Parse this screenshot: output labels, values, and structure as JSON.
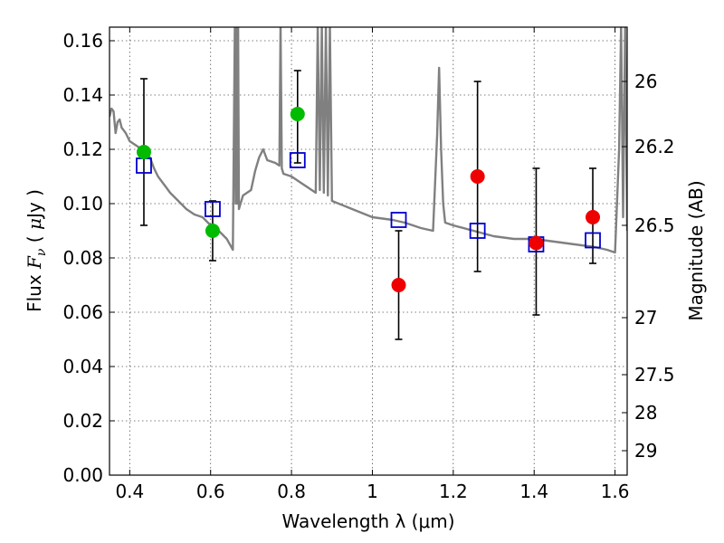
{
  "chart_data": {
    "type": "scatter",
    "xlabel": "Wavelength  λ (μm)",
    "ylabel_left": "Flux  F_ν  ( μJy )",
    "ylabel_right": "Magnitude (AB)",
    "xlim": [
      0.35,
      1.63
    ],
    "ylim": [
      0.0,
      0.165
    ],
    "grid": true,
    "x_ticks": [
      0.4,
      0.6,
      0.8,
      1.0,
      1.2,
      1.4,
      1.6
    ],
    "x_tick_labels": [
      "0.4",
      "0.6",
      "0.8",
      "1",
      "1.2",
      "1.4",
      "1.6"
    ],
    "y_ticks": [
      0.0,
      0.02,
      0.04,
      0.06,
      0.08,
      0.1,
      0.12,
      0.14,
      0.16
    ],
    "y_tick_labels": [
      "0.00",
      "0.02",
      "0.04",
      "0.06",
      "0.08",
      "0.10",
      "0.12",
      "0.14",
      "0.16"
    ],
    "right_ticks": [
      {
        "label": "26",
        "flux": 0.145
      },
      {
        "label": "26.2",
        "flux": 0.121
      },
      {
        "label": "26.5",
        "flux": 0.092
      },
      {
        "label": "27",
        "flux": 0.058
      },
      {
        "label": "27.5",
        "flux": 0.037
      },
      {
        "label": "28",
        "flux": 0.023
      },
      {
        "label": "29",
        "flux": 0.009
      }
    ],
    "colors": {
      "spectrum": "#808080",
      "model_marker": "#0000cc",
      "green_marker": "#00bb00",
      "red_marker": "#ee0000",
      "errorbar": "#000000",
      "grid": "#555555"
    },
    "series": [
      {
        "marker": "green-circle",
        "points": [
          {
            "x": 0.435,
            "y": 0.119,
            "err_low": 0.092,
            "err_high": 0.146
          },
          {
            "x": 0.605,
            "y": 0.09,
            "err_low": 0.079,
            "err_high": 0.101
          },
          {
            "x": 0.815,
            "y": 0.133,
            "err_low": 0.115,
            "err_high": 0.149
          }
        ]
      },
      {
        "marker": "red-circle",
        "points": [
          {
            "x": 1.065,
            "y": 0.07,
            "err_low": 0.05,
            "err_high": 0.09
          },
          {
            "x": 1.26,
            "y": 0.11,
            "err_low": 0.075,
            "err_high": 0.145
          },
          {
            "x": 1.405,
            "y": 0.0855,
            "err_low": 0.059,
            "err_high": 0.113
          },
          {
            "x": 1.545,
            "y": 0.095,
            "err_low": 0.078,
            "err_high": 0.113
          }
        ]
      },
      {
        "marker": "blue-square",
        "points": [
          {
            "x": 0.435,
            "y": 0.114
          },
          {
            "x": 0.605,
            "y": 0.098
          },
          {
            "x": 0.815,
            "y": 0.116
          },
          {
            "x": 1.065,
            "y": 0.094
          },
          {
            "x": 1.26,
            "y": 0.09
          },
          {
            "x": 1.405,
            "y": 0.085
          },
          {
            "x": 1.545,
            "y": 0.0865
          }
        ]
      },
      {
        "marker": "spectrum-line",
        "x": [
          0.35,
          0.355,
          0.36,
          0.365,
          0.37,
          0.375,
          0.38,
          0.39,
          0.4,
          0.41,
          0.42,
          0.43,
          0.44,
          0.45,
          0.46,
          0.47,
          0.48,
          0.49,
          0.5,
          0.52,
          0.54,
          0.56,
          0.58,
          0.6,
          0.62,
          0.64,
          0.655,
          0.66,
          0.662,
          0.664,
          0.666,
          0.668,
          0.67,
          0.68,
          0.7,
          0.71,
          0.72,
          0.73,
          0.74,
          0.76,
          0.77,
          0.773,
          0.776,
          0.78,
          0.8,
          0.82,
          0.84,
          0.86,
          0.865,
          0.87,
          0.875,
          0.88,
          0.885,
          0.89,
          0.895,
          0.9,
          0.95,
          1.0,
          1.05,
          1.08,
          1.1,
          1.12,
          1.15,
          1.16,
          1.165,
          1.17,
          1.175,
          1.18,
          1.2,
          1.25,
          1.3,
          1.35,
          1.4,
          1.45,
          1.5,
          1.55,
          1.58,
          1.6,
          1.61,
          1.615,
          1.62,
          1.625,
          1.63
        ],
        "y": [
          0.132,
          0.135,
          0.134,
          0.126,
          0.13,
          0.131,
          0.128,
          0.126,
          0.123,
          0.122,
          0.121,
          0.12,
          0.119,
          0.117,
          0.113,
          0.11,
          0.108,
          0.106,
          0.104,
          0.101,
          0.098,
          0.096,
          0.095,
          0.092,
          0.09,
          0.087,
          0.083,
          0.166,
          0.1,
          0.166,
          0.1,
          0.166,
          0.098,
          0.103,
          0.105,
          0.112,
          0.117,
          0.12,
          0.116,
          0.115,
          0.114,
          0.166,
          0.113,
          0.111,
          0.11,
          0.108,
          0.106,
          0.104,
          0.166,
          0.105,
          0.166,
          0.104,
          0.166,
          0.103,
          0.166,
          0.101,
          0.098,
          0.095,
          0.094,
          0.093,
          0.092,
          0.091,
          0.09,
          0.125,
          0.15,
          0.12,
          0.1,
          0.093,
          0.092,
          0.09,
          0.088,
          0.087,
          0.087,
          0.086,
          0.085,
          0.084,
          0.083,
          0.082,
          0.12,
          0.166,
          0.095,
          0.166,
          0.09
        ]
      }
    ]
  }
}
